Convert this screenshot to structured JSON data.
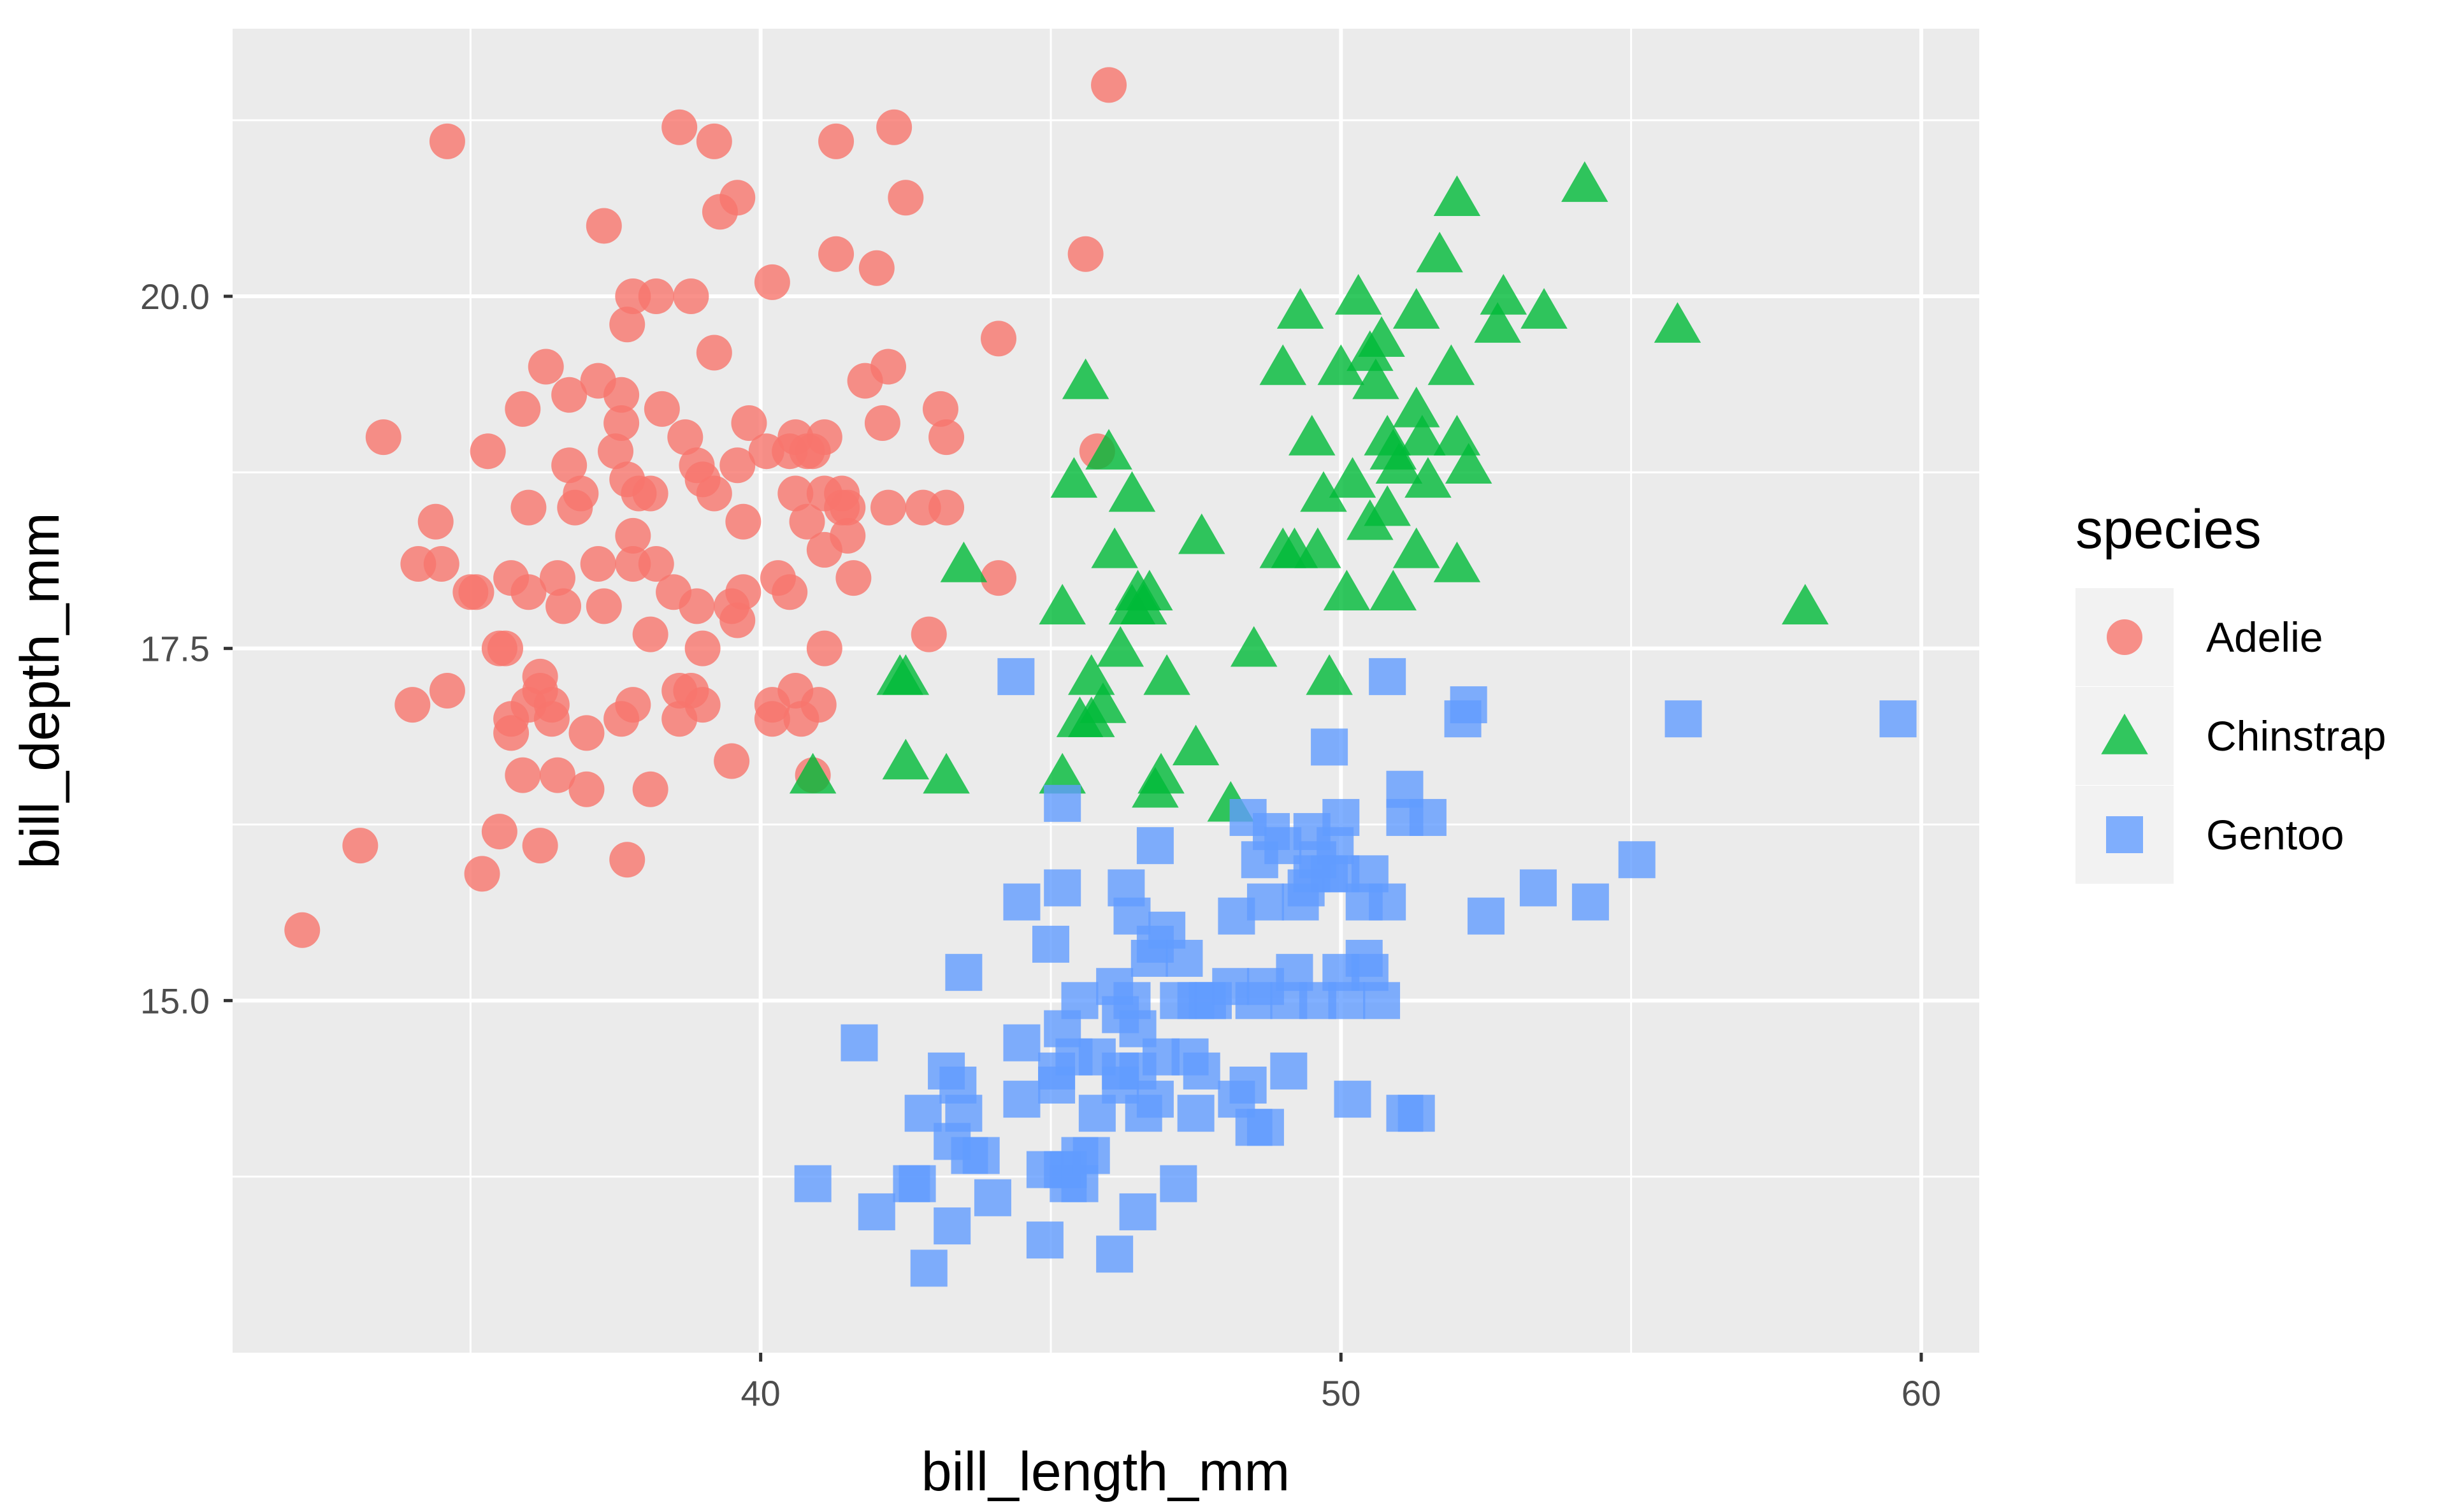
{
  "chart_data": {
    "type": "scatter",
    "title": "",
    "xlabel": "bill_length_mm",
    "ylabel": "bill_depth_mm",
    "xlim": [
      30.9,
      61.0
    ],
    "ylim": [
      12.5,
      21.9
    ],
    "x_ticks": [
      40,
      50,
      60
    ],
    "x_tick_labels": [
      "40",
      "50",
      "60"
    ],
    "y_ticks": [
      15.0,
      17.5,
      20.0
    ],
    "y_tick_labels": [
      "15.0",
      "17.5",
      "20.0"
    ],
    "grid": true,
    "legend": {
      "title": "species",
      "position": "right",
      "entries": [
        "Adelie",
        "Chinstrap",
        "Gentoo"
      ]
    },
    "series": [
      {
        "name": "Adelie",
        "marker": "circle",
        "color": "#F8766D",
        "points": [
          [
            32.1,
            15.5
          ],
          [
            33.1,
            16.1
          ],
          [
            33.5,
            19.0
          ],
          [
            34.0,
            17.1
          ],
          [
            34.1,
            18.1
          ],
          [
            34.4,
            18.4
          ],
          [
            34.5,
            18.1
          ],
          [
            34.6,
            21.1
          ],
          [
            34.6,
            17.2
          ],
          [
            35.0,
            17.9
          ],
          [
            35.1,
            17.9
          ],
          [
            35.2,
            15.9
          ],
          [
            35.3,
            18.9
          ],
          [
            35.5,
            17.5
          ],
          [
            35.5,
            16.2
          ],
          [
            35.6,
            17.5
          ],
          [
            35.7,
            18.0
          ],
          [
            35.7,
            17.0
          ],
          [
            35.7,
            16.9
          ],
          [
            35.9,
            16.6
          ],
          [
            35.9,
            19.2
          ],
          [
            36.0,
            17.1
          ],
          [
            36.0,
            17.9
          ],
          [
            36.0,
            18.5
          ],
          [
            36.2,
            17.2
          ],
          [
            36.2,
            17.3
          ],
          [
            36.2,
            16.1
          ],
          [
            36.3,
            19.5
          ],
          [
            36.4,
            17.1
          ],
          [
            36.4,
            17.0
          ],
          [
            36.5,
            16.6
          ],
          [
            36.5,
            18.0
          ],
          [
            36.6,
            17.8
          ],
          [
            36.7,
            19.3
          ],
          [
            36.7,
            18.8
          ],
          [
            36.8,
            18.5
          ],
          [
            36.9,
            18.6
          ],
          [
            37.0,
            16.9
          ],
          [
            37.0,
            16.5
          ],
          [
            37.2,
            18.1
          ],
          [
            37.2,
            19.4
          ],
          [
            37.3,
            20.5
          ],
          [
            37.3,
            17.8
          ],
          [
            37.5,
            18.9
          ],
          [
            37.6,
            19.1
          ],
          [
            37.6,
            19.3
          ],
          [
            37.6,
            17.0
          ],
          [
            37.7,
            18.7
          ],
          [
            37.7,
            19.8
          ],
          [
            37.7,
            16.0
          ],
          [
            37.8,
            18.3
          ],
          [
            37.8,
            20.0
          ],
          [
            37.8,
            18.1
          ],
          [
            37.8,
            17.1
          ],
          [
            37.9,
            18.6
          ],
          [
            38.1,
            18.6
          ],
          [
            38.1,
            17.6
          ],
          [
            38.1,
            16.5
          ],
          [
            38.2,
            18.1
          ],
          [
            38.2,
            20.0
          ],
          [
            38.3,
            19.2
          ],
          [
            38.5,
            17.9
          ],
          [
            38.6,
            21.2
          ],
          [
            38.6,
            17.2
          ],
          [
            38.6,
            17.0
          ],
          [
            38.7,
            19.0
          ],
          [
            38.8,
            17.2
          ],
          [
            38.8,
            20.0
          ],
          [
            38.9,
            18.8
          ],
          [
            38.9,
            17.8
          ],
          [
            39.0,
            17.5
          ],
          [
            39.0,
            18.7
          ],
          [
            39.0,
            17.1
          ],
          [
            39.2,
            19.6
          ],
          [
            39.2,
            18.6
          ],
          [
            39.2,
            21.1
          ],
          [
            39.3,
            20.6
          ],
          [
            39.5,
            16.7
          ],
          [
            39.5,
            17.8
          ],
          [
            39.6,
            17.7
          ],
          [
            39.6,
            20.7
          ],
          [
            39.6,
            18.8
          ],
          [
            39.7,
            18.4
          ],
          [
            39.7,
            17.9
          ],
          [
            39.8,
            19.1
          ],
          [
            40.1,
            18.9
          ],
          [
            40.2,
            17.0
          ],
          [
            40.2,
            17.1
          ],
          [
            40.2,
            20.1
          ],
          [
            40.3,
            18.0
          ],
          [
            40.5,
            18.9
          ],
          [
            40.5,
            17.9
          ],
          [
            40.6,
            18.6
          ],
          [
            40.6,
            19.0
          ],
          [
            40.6,
            17.2
          ],
          [
            40.7,
            17.0
          ],
          [
            40.8,
            18.4
          ],
          [
            40.8,
            18.9
          ],
          [
            40.9,
            18.9
          ],
          [
            40.9,
            16.6
          ],
          [
            41.0,
            17.1
          ],
          [
            41.1,
            18.2
          ],
          [
            41.1,
            17.5
          ],
          [
            41.1,
            18.6
          ],
          [
            41.1,
            19.0
          ],
          [
            41.3,
            20.3
          ],
          [
            41.3,
            21.1
          ],
          [
            41.4,
            18.6
          ],
          [
            41.4,
            18.5
          ],
          [
            41.5,
            18.3
          ],
          [
            41.5,
            18.5
          ],
          [
            41.6,
            18.0
          ],
          [
            41.8,
            19.4
          ],
          [
            42.0,
            20.2
          ],
          [
            42.1,
            19.1
          ],
          [
            42.2,
            18.5
          ],
          [
            42.2,
            19.5
          ],
          [
            42.3,
            21.2
          ],
          [
            42.5,
            20.7
          ],
          [
            42.8,
            18.5
          ],
          [
            42.9,
            17.6
          ],
          [
            43.1,
            19.2
          ],
          [
            43.2,
            18.5
          ],
          [
            43.2,
            19.0
          ],
          [
            44.1,
            19.7
          ],
          [
            44.1,
            18.0
          ],
          [
            45.6,
            20.3
          ],
          [
            45.8,
            18.9
          ],
          [
            46.0,
            21.5
          ]
        ]
      },
      {
        "name": "Chinstrap",
        "marker": "triangle",
        "color": "#00BA38",
        "points": [
          [
            40.9,
            16.6
          ],
          [
            42.4,
            17.3
          ],
          [
            42.5,
            16.7
          ],
          [
            42.5,
            17.3
          ],
          [
            43.2,
            16.6
          ],
          [
            43.5,
            18.1
          ],
          [
            45.2,
            17.8
          ],
          [
            45.2,
            16.6
          ],
          [
            45.4,
            18.7
          ],
          [
            45.5,
            17.0
          ],
          [
            45.6,
            19.4
          ],
          [
            45.7,
            17.0
          ],
          [
            45.7,
            17.3
          ],
          [
            45.9,
            17.1
          ],
          [
            46.0,
            18.9
          ],
          [
            46.1,
            18.2
          ],
          [
            46.2,
            17.5
          ],
          [
            46.4,
            18.6
          ],
          [
            46.4,
            17.8
          ],
          [
            46.5,
            17.9
          ],
          [
            46.6,
            17.8
          ],
          [
            46.7,
            17.9
          ],
          [
            46.8,
            16.5
          ],
          [
            46.9,
            16.6
          ],
          [
            47.0,
            17.3
          ],
          [
            47.5,
            16.8
          ],
          [
            47.6,
            18.3
          ],
          [
            48.1,
            16.4
          ],
          [
            48.5,
            17.5
          ],
          [
            49.0,
            18.2
          ],
          [
            49.0,
            19.5
          ],
          [
            49.2,
            18.2
          ],
          [
            49.3,
            19.9
          ],
          [
            49.5,
            19.0
          ],
          [
            49.6,
            18.2
          ],
          [
            49.7,
            18.6
          ],
          [
            49.8,
            17.3
          ],
          [
            50.0,
            19.5
          ],
          [
            50.1,
            17.9
          ],
          [
            50.2,
            18.7
          ],
          [
            50.3,
            20.0
          ],
          [
            50.5,
            18.4
          ],
          [
            50.5,
            19.6
          ],
          [
            50.6,
            19.4
          ],
          [
            50.7,
            19.7
          ],
          [
            50.8,
            18.5
          ],
          [
            50.8,
            19.0
          ],
          [
            50.9,
            17.9
          ],
          [
            50.9,
            18.9
          ],
          [
            51.0,
            18.8
          ],
          [
            51.3,
            18.2
          ],
          [
            51.3,
            19.2
          ],
          [
            51.3,
            19.9
          ],
          [
            51.4,
            19.0
          ],
          [
            51.5,
            18.7
          ],
          [
            51.7,
            20.3
          ],
          [
            51.9,
            19.5
          ],
          [
            52.0,
            18.1
          ],
          [
            52.0,
            20.7
          ],
          [
            52.0,
            19.0
          ],
          [
            52.2,
            18.8
          ],
          [
            52.7,
            19.8
          ],
          [
            52.8,
            20.0
          ],
          [
            53.5,
            19.9
          ],
          [
            54.2,
            20.8
          ],
          [
            55.8,
            19.8
          ],
          [
            58.0,
            17.8
          ]
        ]
      },
      {
        "name": "Gentoo",
        "marker": "square",
        "color": "#619CFF",
        "points": [
          [
            40.9,
            13.7
          ],
          [
            41.7,
            14.7
          ],
          [
            42.0,
            13.5
          ],
          [
            42.6,
            13.7
          ],
          [
            42.7,
            13.7
          ],
          [
            42.8,
            14.2
          ],
          [
            42.9,
            13.1
          ],
          [
            43.2,
            14.5
          ],
          [
            43.3,
            13.4
          ],
          [
            43.3,
            14.0
          ],
          [
            43.4,
            14.4
          ],
          [
            43.5,
            14.2
          ],
          [
            43.5,
            15.2
          ],
          [
            43.6,
            13.9
          ],
          [
            43.8,
            13.9
          ],
          [
            44.0,
            13.6
          ],
          [
            44.4,
            17.3
          ],
          [
            44.5,
            14.3
          ],
          [
            44.5,
            15.7
          ],
          [
            44.5,
            14.7
          ],
          [
            44.9,
            13.3
          ],
          [
            44.9,
            13.8
          ],
          [
            45.0,
            15.4
          ],
          [
            45.1,
            14.5
          ],
          [
            45.1,
            14.4
          ],
          [
            45.2,
            13.8
          ],
          [
            45.2,
            14.8
          ],
          [
            45.2,
            15.8
          ],
          [
            45.2,
            16.4
          ],
          [
            45.3,
            13.7
          ],
          [
            45.3,
            13.8
          ],
          [
            45.4,
            14.6
          ],
          [
            45.5,
            13.7
          ],
          [
            45.5,
            13.9
          ],
          [
            45.5,
            15.0
          ],
          [
            45.7,
            13.9
          ],
          [
            45.8,
            14.6
          ],
          [
            45.8,
            14.2
          ],
          [
            46.1,
            13.2
          ],
          [
            46.1,
            15.1
          ],
          [
            46.2,
            14.5
          ],
          [
            46.2,
            14.9
          ],
          [
            46.2,
            14.4
          ],
          [
            46.3,
            15.8
          ],
          [
            46.4,
            15.0
          ],
          [
            46.4,
            15.6
          ],
          [
            46.5,
            14.5
          ],
          [
            46.5,
            13.5
          ],
          [
            46.5,
            14.8
          ],
          [
            46.6,
            14.2
          ],
          [
            46.7,
            15.3
          ],
          [
            46.8,
            14.3
          ],
          [
            46.8,
            15.4
          ],
          [
            46.8,
            16.1
          ],
          [
            46.9,
            14.6
          ],
          [
            47.0,
            15.5
          ],
          [
            47.2,
            13.7
          ],
          [
            47.2,
            15.0
          ],
          [
            47.3,
            15.3
          ],
          [
            47.4,
            14.6
          ],
          [
            47.5,
            14.2
          ],
          [
            47.5,
            15.0
          ],
          [
            47.6,
            14.5
          ],
          [
            47.7,
            15.0
          ],
          [
            47.8,
            15.0
          ],
          [
            48.1,
            15.1
          ],
          [
            48.2,
            14.3
          ],
          [
            48.2,
            15.6
          ],
          [
            48.4,
            14.4
          ],
          [
            48.4,
            16.3
          ],
          [
            48.5,
            14.1
          ],
          [
            48.5,
            15.0
          ],
          [
            48.6,
            16.0
          ],
          [
            48.7,
            14.1
          ],
          [
            48.7,
            15.1
          ],
          [
            48.7,
            15.7
          ],
          [
            48.8,
            16.2
          ],
          [
            49.0,
            16.1
          ],
          [
            49.1,
            14.5
          ],
          [
            49.1,
            15.0
          ],
          [
            49.2,
            15.2
          ],
          [
            49.3,
            15.7
          ],
          [
            49.4,
            15.8
          ],
          [
            49.5,
            15.9
          ],
          [
            49.5,
            16.2
          ],
          [
            49.6,
            15.0
          ],
          [
            49.6,
            16.0
          ],
          [
            49.8,
            15.9
          ],
          [
            49.8,
            16.8
          ],
          [
            49.9,
            16.1
          ],
          [
            50.0,
            15.2
          ],
          [
            50.0,
            15.9
          ],
          [
            50.0,
            16.3
          ],
          [
            50.1,
            15.0
          ],
          [
            50.2,
            14.3
          ],
          [
            50.4,
            15.3
          ],
          [
            50.4,
            15.7
          ],
          [
            50.5,
            15.2
          ],
          [
            50.5,
            15.9
          ],
          [
            50.7,
            15.0
          ],
          [
            50.8,
            15.7
          ],
          [
            50.8,
            17.3
          ],
          [
            51.1,
            14.2
          ],
          [
            51.1,
            16.3
          ],
          [
            51.1,
            16.5
          ],
          [
            51.3,
            14.2
          ],
          [
            51.5,
            16.3
          ],
          [
            52.1,
            17.0
          ],
          [
            52.2,
            17.1
          ],
          [
            52.5,
            15.6
          ],
          [
            53.4,
            15.8
          ],
          [
            54.3,
            15.7
          ],
          [
            55.1,
            16.0
          ],
          [
            55.9,
            17.0
          ],
          [
            59.6,
            17.0
          ]
        ]
      }
    ]
  }
}
